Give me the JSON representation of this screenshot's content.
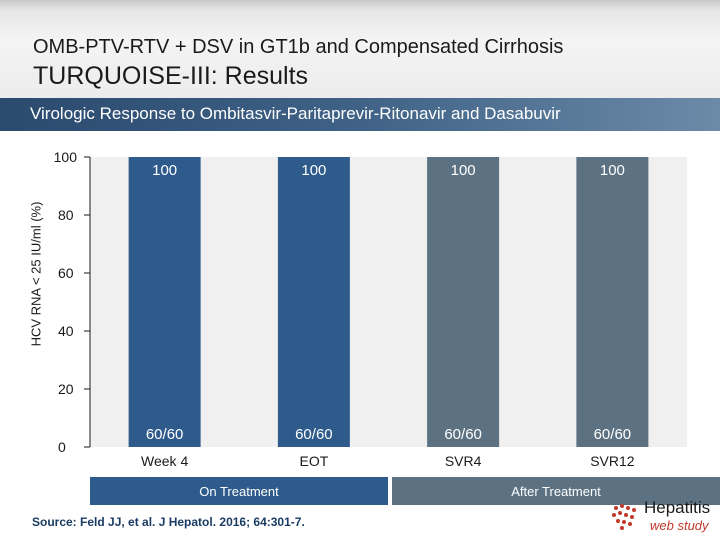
{
  "header": {
    "title": "OMB-PTV-RTV + DSV in GT1b and Compensated Cirrhosis",
    "subtitle": "TURQUOISE-III: Results"
  },
  "section_title": "Virologic Response to Ombitasvir-Paritaprevir-Ritonavir and Dasabuvir",
  "chart_data": {
    "type": "bar",
    "categories": [
      "Week 4",
      "EOT",
      "SVR4",
      "SVR12"
    ],
    "values": [
      100,
      100,
      100,
      100
    ],
    "value_labels": [
      "100",
      "100",
      "100",
      "100"
    ],
    "fraction_labels": [
      "60/60",
      "60/60",
      "60/60",
      "60/60"
    ],
    "ylabel": "HCV RNA < 25 IU/ml (%)",
    "xlabel": "",
    "ylim": [
      0,
      100
    ],
    "yticks": [
      0,
      20,
      40,
      60,
      80,
      100
    ],
    "grid": false,
    "bar_colors": [
      "#2f5b8c",
      "#2f5b8c",
      "#5c7283",
      "#5c7283"
    ],
    "groups": [
      {
        "label": "On Treatment",
        "categories": [
          "Week 4",
          "EOT"
        ],
        "color": "#2f5b8c"
      },
      {
        "label": "After Treatment",
        "categories": [
          "SVR4",
          "SVR12"
        ],
        "color": "#5c7283"
      }
    ]
  },
  "source": "Source: Feld JJ, et al. J Hepatol. 2016; 64:301-7.",
  "logo": {
    "line1": "Hepatitis",
    "line2": "web study"
  }
}
